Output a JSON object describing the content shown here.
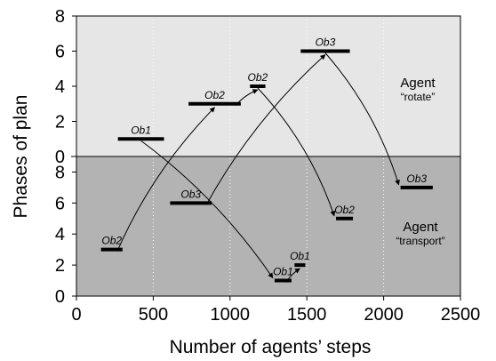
{
  "chart_data": {
    "type": "line",
    "xlabel": "Number of agents’ steps",
    "ylabel": "Phases of plan",
    "xlim": [
      0,
      2500
    ],
    "x_ticks": [
      "0",
      "500",
      "1000",
      "1500",
      "2000",
      "2500"
    ],
    "panels": [
      {
        "name": "rotate",
        "title": "Agent",
        "subtitle": "“rotate”",
        "ylim": [
          0,
          8
        ],
        "y_ticks": [
          "0",
          "2",
          "4",
          "6",
          "8"
        ],
        "color": "#e6e6e6"
      },
      {
        "name": "transport",
        "title": "Agent",
        "subtitle": "“transport”",
        "ylim": [
          0,
          9
        ],
        "y_ticks": [
          "0",
          "2",
          "4",
          "6",
          "8"
        ],
        "color": "#b3b3b3"
      }
    ],
    "segments": [
      {
        "id": "r1",
        "panel": "rotate",
        "label": "Ob1",
        "x_start": 270,
        "x_end": 570,
        "y": 1
      },
      {
        "id": "r3",
        "panel": "rotate",
        "label": "Ob2",
        "x_start": 730,
        "x_end": 1070,
        "y": 3
      },
      {
        "id": "r4",
        "panel": "rotate",
        "label": "Ob2",
        "x_start": 1130,
        "x_end": 1230,
        "y": 4
      },
      {
        "id": "r6",
        "panel": "rotate",
        "label": "Ob3",
        "x_start": 1460,
        "x_end": 1780,
        "y": 6
      },
      {
        "id": "t7",
        "panel": "transport",
        "label": "Ob3",
        "x_start": 2110,
        "x_end": 2320,
        "y": 7
      },
      {
        "id": "t6",
        "panel": "transport",
        "label": "Ob3",
        "x_start": 610,
        "x_end": 880,
        "y": 6
      },
      {
        "id": "t5",
        "panel": "transport",
        "label": "Ob2",
        "x_start": 1690,
        "x_end": 1800,
        "y": 5
      },
      {
        "id": "t3",
        "panel": "transport",
        "label": "Ob2",
        "x_start": 160,
        "x_end": 300,
        "y": 3
      },
      {
        "id": "t2",
        "panel": "transport",
        "label": "Ob1",
        "x_start": 1420,
        "x_end": 1490,
        "y": 2
      },
      {
        "id": "t1",
        "panel": "transport",
        "label": "Ob1",
        "x_start": 1290,
        "x_end": 1400,
        "y": 1
      }
    ],
    "arrows": [
      {
        "from": "t3",
        "to": "r3"
      },
      {
        "from": "r3",
        "to": "r4"
      },
      {
        "from": "r4",
        "to": "t5"
      },
      {
        "from": "r1",
        "to": "t1"
      },
      {
        "from": "t1",
        "to": "t2"
      },
      {
        "from": "t6",
        "to": "r6"
      },
      {
        "from": "r6",
        "to": "t7"
      }
    ]
  }
}
